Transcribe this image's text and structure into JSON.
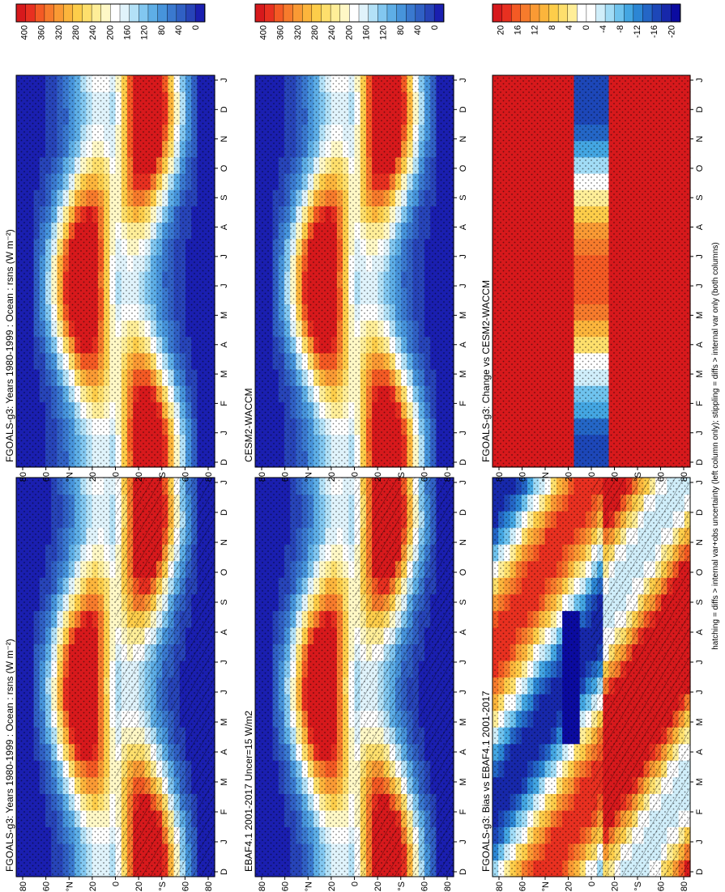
{
  "footer_note": "hatching = diffs > internal var+obs uncertainty (left column only); stippling = diffs > internal var only (both columns)",
  "colors": {
    "abs_scale": [
      "#d7191c",
      "#e83020",
      "#f45a24",
      "#f77b2c",
      "#fa9a34",
      "#fcb53c",
      "#fdcd4a",
      "#fedf6c",
      "#ffee98",
      "#fff8c6",
      "#ffffff",
      "#e0f3fb",
      "#b3e1f7",
      "#82c7f0",
      "#5eaee6",
      "#4794db",
      "#3a79cf",
      "#3060c4",
      "#2744b8",
      "#1a1fb0"
    ],
    "diff_scale": [
      "#d7191c",
      "#e83020",
      "#f45a24",
      "#f77b2c",
      "#fa9a34",
      "#fcb53c",
      "#fdcd4a",
      "#fedf6c",
      "#ffee98",
      "#ffffff",
      "#ffffff",
      "#d0eefa",
      "#a2dcf6",
      "#6fc3ee",
      "#44a6e2",
      "#2c86d4",
      "#2466c6",
      "#1d47b8",
      "#1728aa",
      "#0b0ba0"
    ]
  },
  "chart_data": [
    {
      "type": "heatmap",
      "title": "FGOALS-g3: Years 1980-1999 : Ocean : rsns (W m⁻²)",
      "x": [
        "D",
        "J",
        "F",
        "M",
        "A",
        "M",
        "J",
        "J",
        "A",
        "S",
        "O",
        "N",
        "D",
        "J"
      ],
      "y_ticks": [
        "80",
        "60",
        "°N",
        "20",
        "0",
        "20",
        "°S",
        "60",
        "80"
      ],
      "colorbar_ticks": [
        "400",
        "360",
        "320",
        "280",
        "240",
        "200",
        "160",
        "120",
        "80",
        "40",
        "0"
      ],
      "zlim": [
        0,
        400
      ],
      "overlay": "hatching+stippling"
    },
    {
      "type": "heatmap",
      "title": "FGOALS-g3: Years 1980-1999 : Ocean : rsns (W m⁻²)",
      "x": [
        "D",
        "J",
        "F",
        "M",
        "A",
        "M",
        "J",
        "J",
        "A",
        "S",
        "O",
        "N",
        "D",
        "J"
      ],
      "y_ticks": [
        "80",
        "60",
        "°N",
        "20",
        "0",
        "20",
        "°S",
        "60",
        "80"
      ],
      "colorbar_ticks": [
        "400",
        "360",
        "320",
        "280",
        "240",
        "200",
        "160",
        "120",
        "80",
        "40",
        "0"
      ],
      "zlim": [
        0,
        400
      ],
      "overlay": "stippling"
    },
    {
      "type": "heatmap",
      "title": "EBAF4.1 2001-2017 Uncer=15 W/m2",
      "x": [
        "D",
        "J",
        "F",
        "M",
        "A",
        "M",
        "J",
        "J",
        "A",
        "S",
        "O",
        "N",
        "D",
        "J"
      ],
      "y_ticks": [
        "80",
        "60",
        "°N",
        "20",
        "0",
        "20",
        "°S",
        "60",
        "80"
      ],
      "colorbar_ticks": [
        "400",
        "360",
        "320",
        "280",
        "240",
        "200",
        "160",
        "120",
        "80",
        "40",
        "0"
      ],
      "zlim": [
        0,
        400
      ],
      "overlay": "hatching+stippling"
    },
    {
      "type": "heatmap",
      "title": "CESM2-WACCM",
      "x": [
        "D",
        "J",
        "F",
        "M",
        "A",
        "M",
        "J",
        "J",
        "A",
        "S",
        "O",
        "N",
        "D",
        "J"
      ],
      "y_ticks": [
        "80",
        "60",
        "°N",
        "20",
        "0",
        "20",
        "°S",
        "60",
        "80"
      ],
      "colorbar_ticks": [
        "400",
        "360",
        "320",
        "280",
        "240",
        "200",
        "160",
        "120",
        "80",
        "40",
        "0"
      ],
      "zlim": [
        0,
        400
      ],
      "overlay": "stippling"
    },
    {
      "type": "heatmap",
      "title": "FGOALS-g3: Bias vs EBAF4.1 2001-2017",
      "x": [
        "D",
        "J",
        "F",
        "M",
        "A",
        "M",
        "J",
        "J",
        "A",
        "S",
        "O",
        "N",
        "D",
        "J"
      ],
      "y_ticks": [
        "80",
        "60",
        "°N",
        "20",
        "0",
        "20",
        "°S",
        "60",
        "80"
      ],
      "colorbar_ticks": [
        "20",
        "16",
        "12",
        "8",
        "4",
        "0",
        "-4",
        "-8",
        "-12",
        "-16",
        "-20"
      ],
      "zlim": [
        -20,
        20
      ],
      "overlay": "hatching+stippling"
    },
    {
      "type": "heatmap",
      "title": "FGOALS-g3: Change vs CESM2-WACCM",
      "x": [
        "D",
        "J",
        "F",
        "M",
        "A",
        "M",
        "J",
        "J",
        "A",
        "S",
        "O",
        "N",
        "D",
        "J"
      ],
      "y_ticks": [
        "80",
        "60",
        "°N",
        "20",
        "0",
        "20",
        "°S",
        "60",
        "80"
      ],
      "colorbar_ticks": [
        "20",
        "16",
        "12",
        "8",
        "4",
        "0",
        "-4",
        "-8",
        "-12",
        "-16",
        "-20"
      ],
      "zlim": [
        -20,
        20
      ],
      "overlay": "stippling"
    }
  ]
}
